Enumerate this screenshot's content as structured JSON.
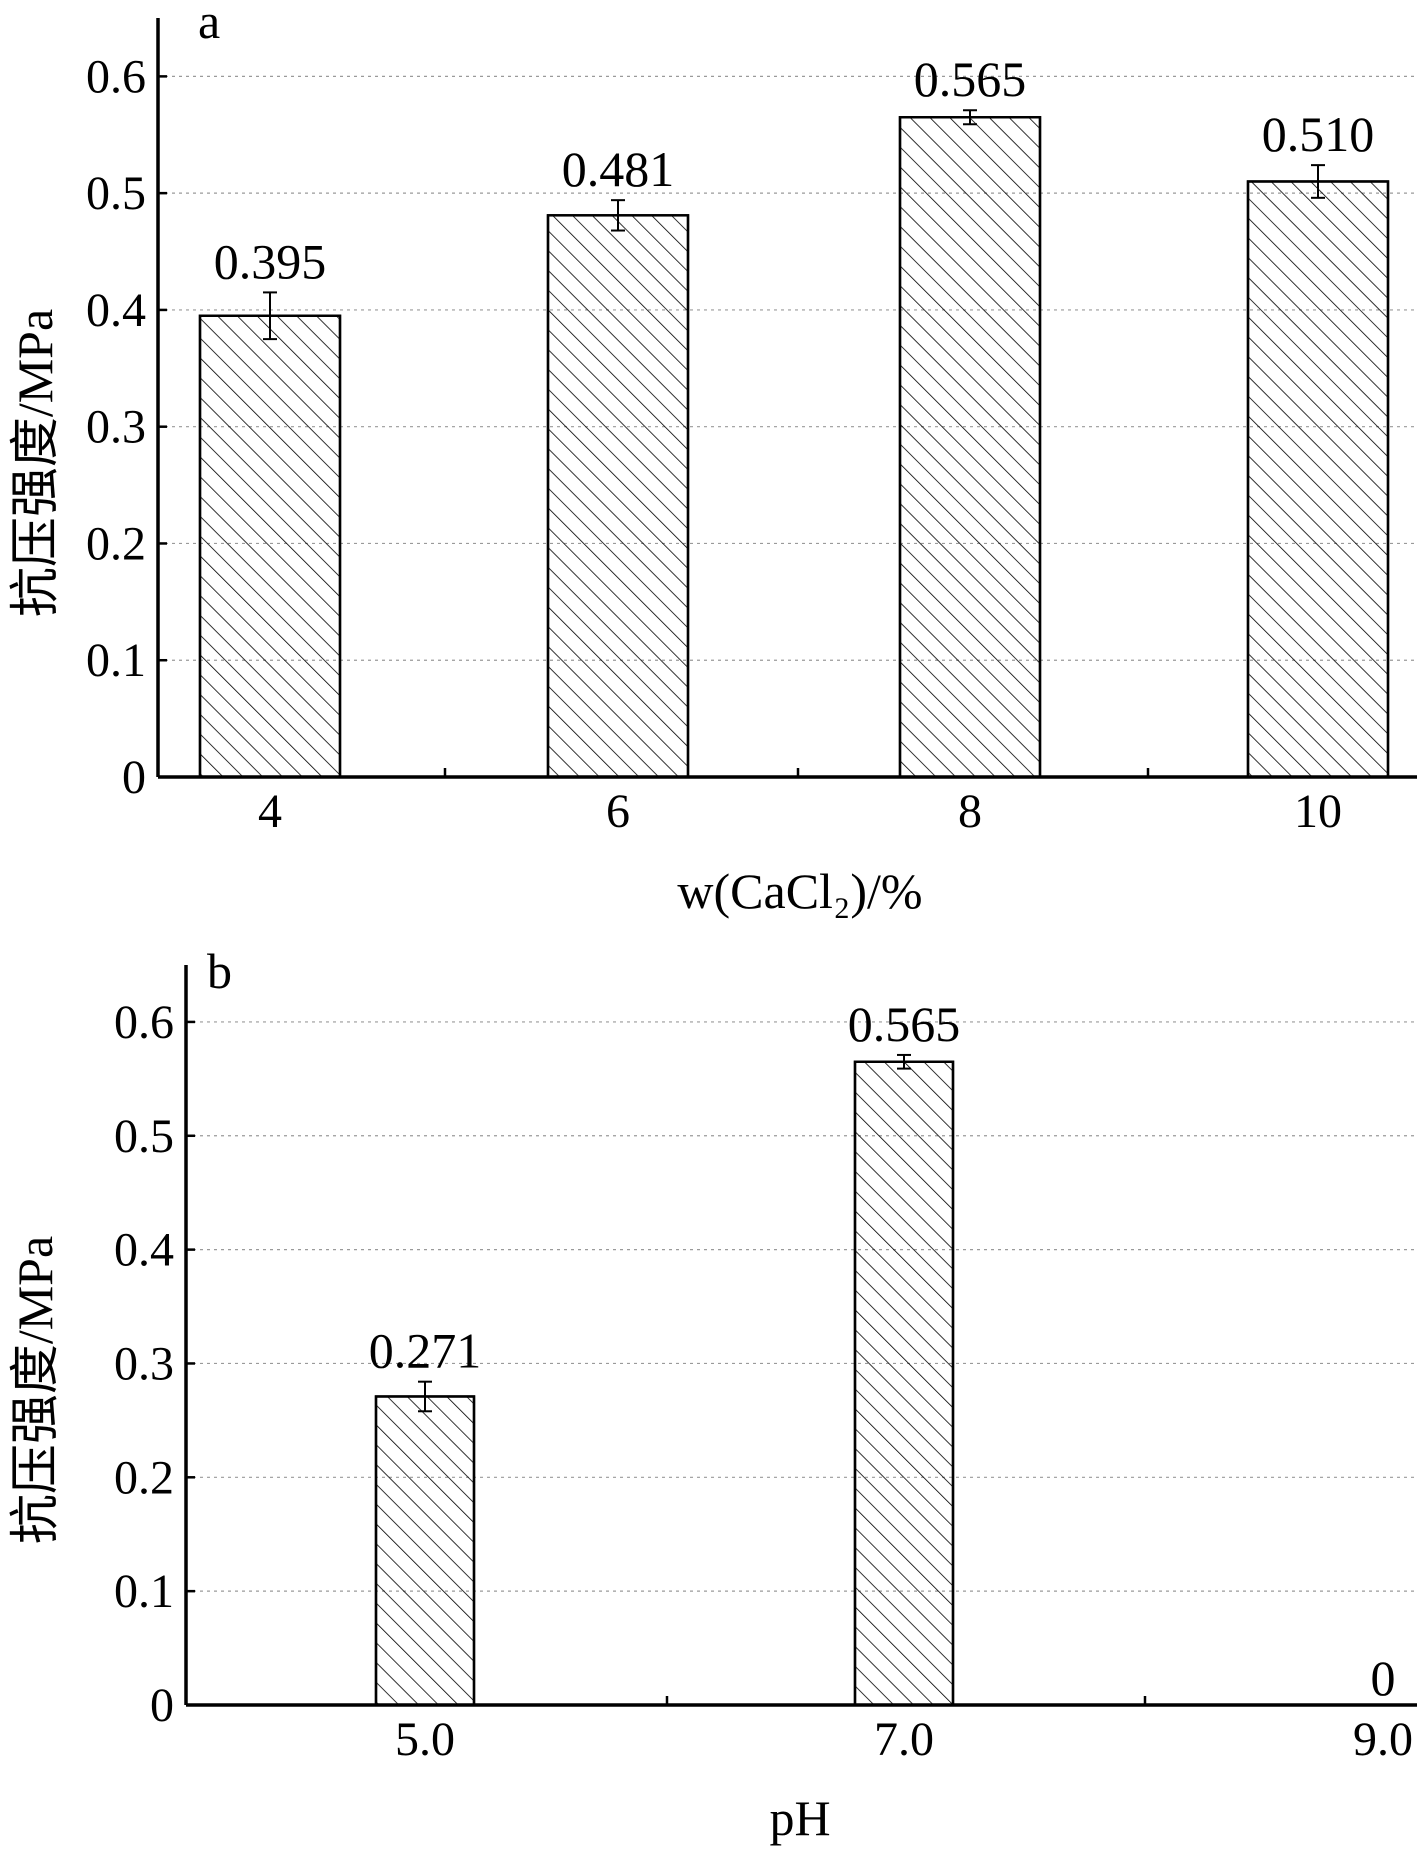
{
  "chart_data": [
    {
      "type": "bar",
      "panel_label": "a",
      "categories": [
        "4",
        "6",
        "8",
        "10"
      ],
      "values": [
        0.395,
        0.481,
        0.565,
        0.51
      ],
      "value_labels": [
        "0.395",
        "0.481",
        "0.565",
        "0.510"
      ],
      "errors": [
        0.02,
        0.013,
        0.006,
        0.014
      ],
      "ylabel": "抗压强度/MPa",
      "xlabel": "w(CaCl₂)/%",
      "ylim": [
        0,
        0.65
      ],
      "yticks": [
        0,
        0.1,
        0.2,
        0.3,
        0.4,
        0.5,
        0.6
      ],
      "ytick_labels": [
        "0",
        "0.1",
        "0.2",
        "0.3",
        "0.4",
        "0.5",
        "0.6"
      ],
      "grid": true,
      "bar_pattern": "diagonal-hatch"
    },
    {
      "type": "bar",
      "panel_label": "b",
      "categories": [
        "5.0",
        "7.0",
        "9.0"
      ],
      "values": [
        0.271,
        0.565,
        0
      ],
      "value_labels": [
        "0.271",
        "0.565",
        "0"
      ],
      "errors": [
        0.013,
        0.006,
        0
      ],
      "ylabel": "抗压强度/MPa",
      "xlabel": "pH",
      "ylim": [
        0,
        0.65
      ],
      "yticks": [
        0,
        0.1,
        0.2,
        0.3,
        0.4,
        0.5,
        0.6
      ],
      "ytick_labels": [
        "0",
        "0.1",
        "0.2",
        "0.3",
        "0.4",
        "0.5",
        "0.6"
      ],
      "grid": true,
      "bar_pattern": "diagonal-hatch"
    }
  ]
}
